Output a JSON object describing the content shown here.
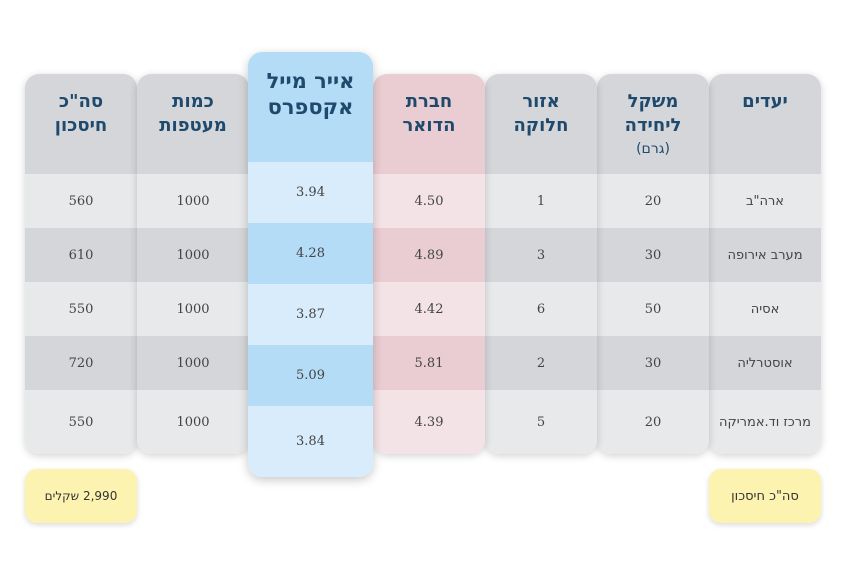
{
  "columns": {
    "destinations": {
      "header": "יעדים",
      "rows": [
        "ארה\"ב",
        "מערב אירופה",
        "אסיה",
        "אוסטרליה",
        "מרכז וד.אמריקה"
      ]
    },
    "unit_weight": {
      "header_line1": "משקל",
      "header_line2": "ליחידה",
      "header_line3": "(גרם)",
      "rows": [
        "20",
        "30",
        "50",
        "30",
        "20"
      ]
    },
    "zone": {
      "header_line1": "אזור",
      "header_line2": "חלוקה",
      "rows": [
        "1",
        "3",
        "6",
        "2",
        "5"
      ]
    },
    "post_company": {
      "header_line1": "חברת",
      "header_line2": "הדואר",
      "rows": [
        "4.50",
        "4.89",
        "4.42",
        "5.81",
        "4.39"
      ]
    },
    "air_mail_express": {
      "header_line1": "אייר מייל",
      "header_line2": "אקספרס",
      "rows": [
        "3.94",
        "4.28",
        "3.87",
        "5.09",
        "3.84"
      ]
    },
    "envelope_qty": {
      "header_line1": "כמות",
      "header_line2": "מעטפות",
      "rows": [
        "1000",
        "1000",
        "1000",
        "1000",
        "1000"
      ]
    },
    "total_savings": {
      "header_line1": "סה\"כ",
      "header_line2": "חיסכון",
      "rows": [
        "560",
        "610",
        "550",
        "720",
        "550"
      ]
    }
  },
  "footer": {
    "total_label": "סה\"כ חיסכון",
    "total_value": "2,990 שקלים"
  },
  "colors": {
    "header_text": "#1f4a6e",
    "gray": "#d4d6d9",
    "pink": "#e9cdd2",
    "blue": "#b4dcf6",
    "badge": "#fdf3b0"
  }
}
